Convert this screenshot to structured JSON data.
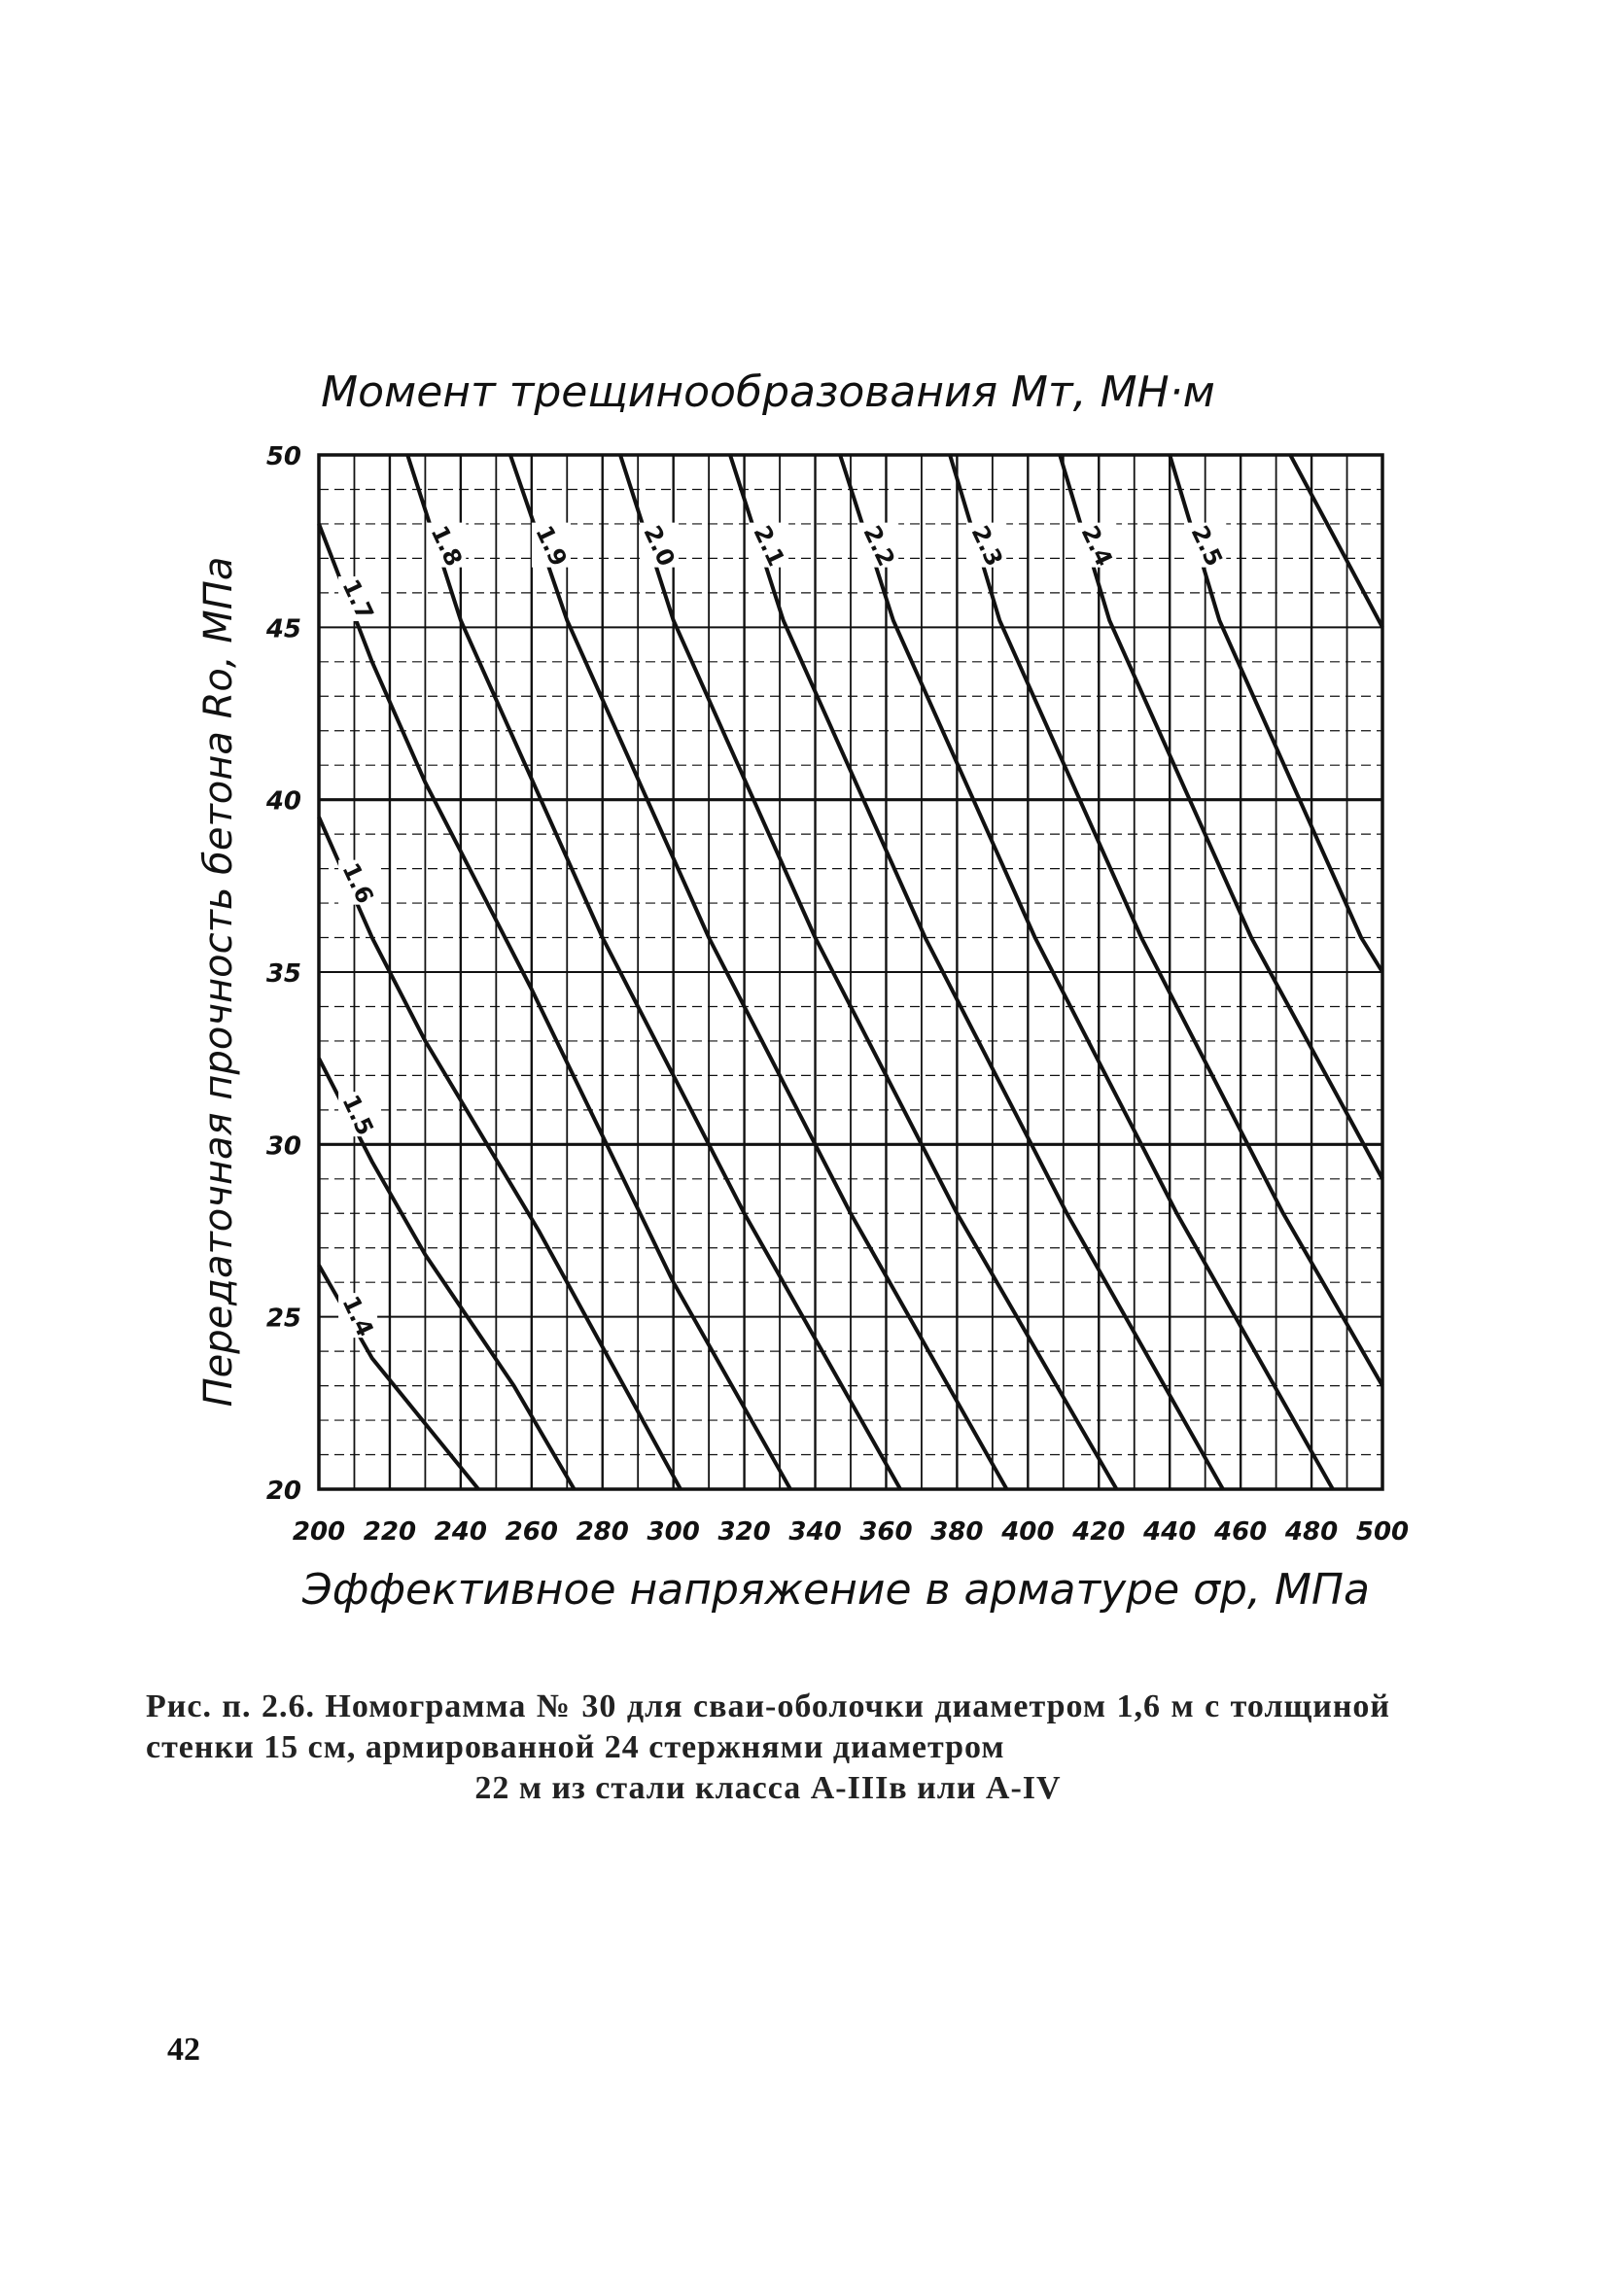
{
  "chart_data": {
    "type": "line",
    "title": "Момент трещинообразования Mт, МН·м",
    "xlabel": "Эффективное напряжение в арматуре σp, МПа",
    "ylabel": "Передаточная прочность бетона Rо, МПа",
    "xlim": [
      200,
      500
    ],
    "ylim": [
      20,
      50
    ],
    "xticks": [
      "200",
      "220",
      "240",
      "260",
      "280",
      "300",
      "320",
      "340",
      "360",
      "380",
      "400",
      "420",
      "440",
      "460",
      "480",
      "500"
    ],
    "yticks": [
      "20",
      "25",
      "30",
      "35",
      "40",
      "45",
      "50"
    ],
    "grid": true,
    "series": [
      {
        "name": "1.4",
        "x": [
          200,
          215,
          230,
          245
        ],
        "y": [
          26.5,
          23.8,
          21.9,
          20.0
        ]
      },
      {
        "name": "1.5",
        "x": [
          200,
          215,
          230,
          255,
          272
        ],
        "y": [
          32.5,
          29.5,
          26.8,
          23.0,
          20.0
        ]
      },
      {
        "name": "1.6",
        "x": [
          200,
          215,
          230,
          262,
          302
        ],
        "y": [
          39.5,
          36.0,
          33.0,
          27.5,
          20.0
        ]
      },
      {
        "name": "1.7",
        "x": [
          200,
          215,
          230,
          260,
          300,
          333
        ],
        "y": [
          48.0,
          44.0,
          40.5,
          34.5,
          26.0,
          20.0
        ]
      },
      {
        "name": "1.8",
        "x": [
          225,
          240,
          280,
          320,
          364
        ],
        "y": [
          50.0,
          45.2,
          36.0,
          28.0,
          20.0
        ]
      },
      {
        "name": "1.9",
        "x": [
          254,
          270,
          310,
          350,
          394
        ],
        "y": [
          50.0,
          45.2,
          36.0,
          28.0,
          20.0
        ]
      },
      {
        "name": "2.0",
        "x": [
          285,
          300,
          340,
          380,
          425
        ],
        "y": [
          50.0,
          45.2,
          36.0,
          28.0,
          20.0
        ]
      },
      {
        "name": "2.1",
        "x": [
          316,
          331,
          371,
          411,
          455
        ],
        "y": [
          50.0,
          45.2,
          36.0,
          28.0,
          20.0
        ]
      },
      {
        "name": "2.2",
        "x": [
          347,
          362,
          402,
          442,
          486
        ],
        "y": [
          50.0,
          45.2,
          36.0,
          28.0,
          20.0
        ]
      },
      {
        "name": "2.3",
        "x": [
          378,
          392,
          432,
          472,
          500
        ],
        "y": [
          50.0,
          45.2,
          36.0,
          28.0,
          23.0
        ]
      },
      {
        "name": "2.4",
        "x": [
          409,
          423,
          463,
          500
        ],
        "y": [
          50.0,
          45.2,
          36.0,
          29.0
        ]
      },
      {
        "name": "2.5",
        "x": [
          440,
          454,
          494,
          500
        ],
        "y": [
          50.0,
          45.2,
          36.0,
          35.0
        ]
      },
      {
        "name": "",
        "x": [
          474,
          500
        ],
        "y": [
          50.0,
          45.0
        ]
      }
    ]
  },
  "caption": {
    "line1": "Рис. п. 2.6. Номограмма № 30 для сваи-оболочки диаметром 1,6 м",
    "line2": "с толщиной стенки 15 см, армированной 24 стержнями диаметром",
    "line3": "22 м из стали класса А-IIIв или А-IV"
  },
  "page_number": "42",
  "colors": {
    "ink": "#111111",
    "paper": "#ffffff"
  }
}
